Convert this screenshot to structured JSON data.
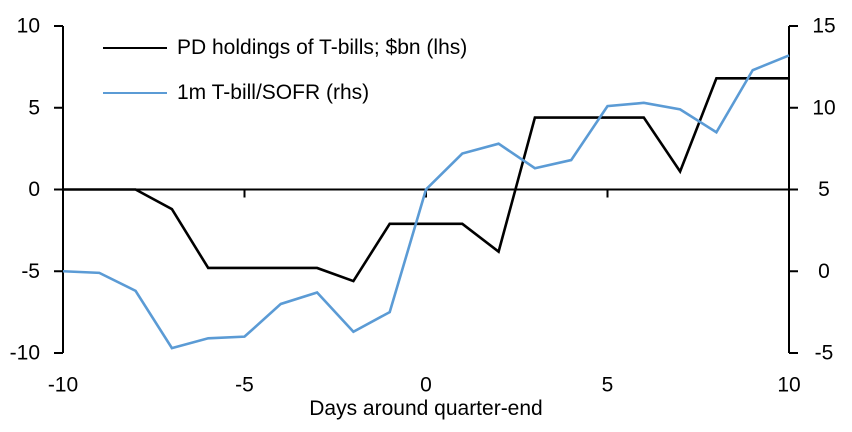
{
  "chart_data": {
    "type": "line",
    "title": "",
    "xlabel": "Days around quarter-end",
    "grid": false,
    "background": "#FFFFFF",
    "legend_position": "top-left",
    "x": [
      -10,
      -9,
      -8,
      -7,
      -6,
      -5,
      -4,
      -3,
      -2,
      -1,
      0,
      1,
      2,
      3,
      4,
      5,
      6,
      7,
      8,
      9,
      10
    ],
    "series": [
      {
        "name": "PD holdings of T-bills; $bn (lhs)",
        "axis": "left",
        "color": "#000000",
        "values": [
          0,
          0,
          0,
          -1.2,
          -4.8,
          -4.8,
          -4.8,
          -4.8,
          -5.6,
          -2.1,
          -2.1,
          -2.1,
          -3.8,
          4.4,
          4.4,
          4.4,
          4.4,
          1.1,
          6.8,
          6.8,
          6.8
        ]
      },
      {
        "name": "1m T-bill/SOFR (rhs)",
        "axis": "right",
        "color": "#5B9BD5",
        "values": [
          0,
          -0.1,
          -1.2,
          -4.7,
          -4.1,
          -4.0,
          -2.0,
          -1.3,
          -3.7,
          -2.5,
          5.0,
          7.2,
          7.8,
          6.3,
          6.8,
          10.1,
          10.3,
          9.9,
          8.5,
          12.3,
          13.2
        ]
      }
    ],
    "left_axis": {
      "range": [
        -10,
        10
      ],
      "ticks": [
        "10",
        "5",
        "0",
        "-5",
        "-10"
      ]
    },
    "right_axis": {
      "range": [
        -5,
        15
      ],
      "ticks": [
        "15",
        "10",
        "5",
        "0",
        "-5"
      ]
    },
    "x_axis": {
      "range": [
        -10,
        10
      ],
      "labels": [
        "-10",
        "-5",
        "0",
        "5",
        "10"
      ],
      "inner_ticks": [
        -5,
        0,
        5
      ]
    }
  }
}
